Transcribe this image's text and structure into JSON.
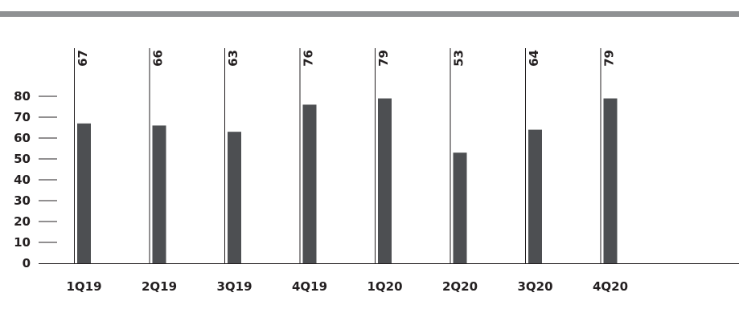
{
  "chart_data": {
    "type": "bar",
    "title": "",
    "xlabel": "",
    "ylabel": "",
    "categories": [
      "1Q19",
      "2Q19",
      "3Q19",
      "4Q19",
      "1Q20",
      "2Q20",
      "3Q20",
      "4Q20"
    ],
    "values": [
      67,
      66,
      63,
      76,
      79,
      53,
      64,
      79
    ],
    "value_labels": [
      "67",
      "66",
      "63",
      "76",
      "79",
      "53",
      "64",
      "79"
    ],
    "yticks": [
      "0",
      "10",
      "20",
      "30",
      "40",
      "50",
      "60",
      "70",
      "80"
    ],
    "ylim": [
      0,
      80
    ],
    "grid": false,
    "legend": "none",
    "colors": {
      "bar": "#4d4f52",
      "axis": "#231f20",
      "top_rule": "#8f9193"
    }
  }
}
